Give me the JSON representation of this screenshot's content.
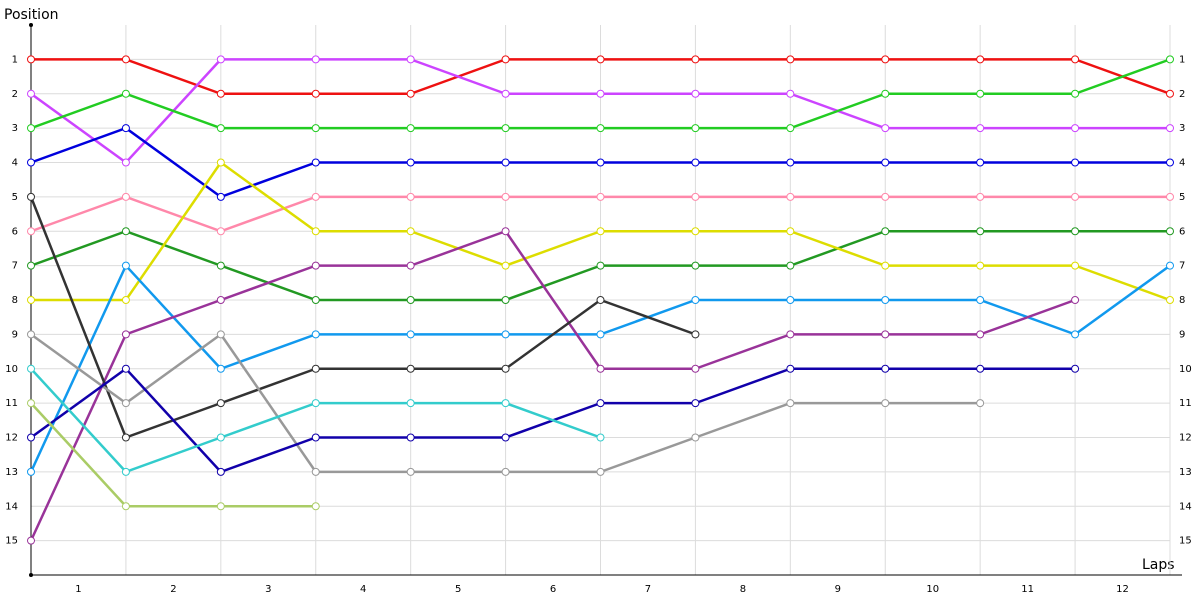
{
  "chart_data": {
    "type": "line",
    "y_label": "Position",
    "x_label": "Laps",
    "x": [
      0,
      1,
      2,
      3,
      4,
      5,
      6,
      7,
      8,
      9,
      10,
      11,
      12
    ],
    "xlim": [
      0,
      12
    ],
    "xticks": [
      {
        "value": 0.5,
        "label": "1"
      },
      {
        "value": 1.5,
        "label": "2"
      },
      {
        "value": 2.5,
        "label": "3"
      },
      {
        "value": 3.5,
        "label": "4"
      },
      {
        "value": 4.5,
        "label": "5"
      },
      {
        "value": 5.5,
        "label": "6"
      },
      {
        "value": 6.5,
        "label": "7"
      },
      {
        "value": 7.5,
        "label": "8"
      },
      {
        "value": 8.5,
        "label": "9"
      },
      {
        "value": 9.5,
        "label": "10"
      },
      {
        "value": 10.5,
        "label": "11"
      },
      {
        "value": 11.5,
        "label": "12"
      }
    ],
    "ylim": [
      16,
      0
    ],
    "yticks": [
      1,
      2,
      3,
      4,
      5,
      6,
      7,
      8,
      9,
      10,
      11,
      12,
      13,
      14,
      15
    ],
    "grid": true,
    "series": [
      {
        "color": "#ee1111",
        "values": [
          1,
          1,
          2,
          2,
          2,
          1,
          1,
          1,
          1,
          1,
          1,
          1,
          2
        ]
      },
      {
        "color": "#cc44ff",
        "values": [
          2,
          4,
          1,
          1,
          1,
          2,
          2,
          2,
          2,
          3,
          3,
          3,
          3
        ]
      },
      {
        "color": "#22cc22",
        "values": [
          3,
          2,
          3,
          3,
          3,
          3,
          3,
          3,
          3,
          2,
          2,
          2,
          1
        ]
      },
      {
        "color": "#0000dd",
        "values": [
          4,
          3,
          5,
          4,
          4,
          4,
          4,
          4,
          4,
          4,
          4,
          4,
          4
        ]
      },
      {
        "color": "#ff88aa",
        "values": [
          6,
          5,
          6,
          5,
          5,
          5,
          5,
          5,
          5,
          5,
          5,
          5,
          5
        ]
      },
      {
        "color": "#229922",
        "values": [
          7,
          6,
          7,
          8,
          8,
          8,
          7,
          7,
          7,
          6,
          6,
          6,
          6
        ]
      },
      {
        "color": "#dddd00",
        "values": [
          8,
          8,
          4,
          6,
          6,
          7,
          6,
          6,
          6,
          7,
          7,
          7,
          8
        ]
      },
      {
        "color": "#1199ee",
        "values": [
          13,
          7,
          10,
          9,
          9,
          9,
          9,
          8,
          8,
          8,
          8,
          9,
          7
        ]
      },
      {
        "color": "#993399",
        "values": [
          15,
          9,
          8,
          7,
          7,
          6,
          10,
          10,
          9,
          9,
          9,
          8,
          null
        ]
      },
      {
        "color": "#333333",
        "values": [
          5,
          12,
          11,
          10,
          10,
          10,
          8,
          9,
          null,
          null,
          null,
          null,
          null
        ]
      },
      {
        "color": "#999999",
        "values": [
          9,
          11,
          9,
          13,
          13,
          13,
          13,
          12,
          11,
          11,
          11,
          null,
          null
        ]
      },
      {
        "color": "#1100aa",
        "values": [
          12,
          10,
          13,
          12,
          12,
          12,
          11,
          11,
          10,
          10,
          10,
          10,
          null
        ]
      },
      {
        "color": "#33cccc",
        "values": [
          10,
          13,
          12,
          11,
          11,
          11,
          12,
          null,
          null,
          null,
          null,
          null,
          null
        ]
      },
      {
        "color": "#aacc66",
        "values": [
          11,
          14,
          14,
          14,
          null,
          null,
          null,
          null,
          null,
          null,
          null,
          null,
          null
        ]
      }
    ]
  }
}
